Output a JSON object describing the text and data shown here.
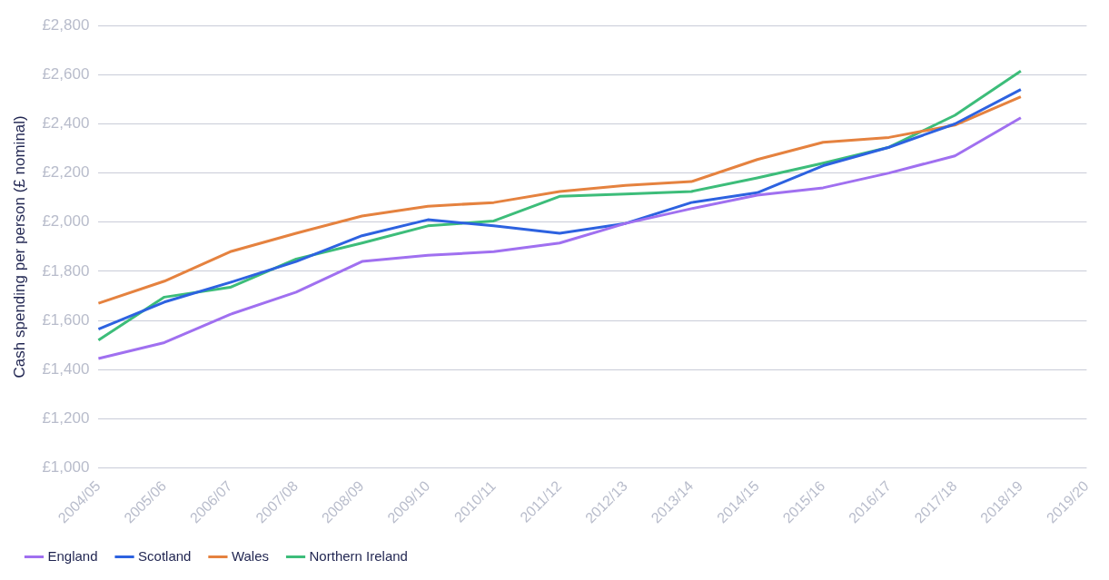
{
  "chart_data": {
    "type": "line",
    "ylabel": "Cash spending per person (£ nominal)",
    "categories": [
      "2004/05",
      "2005/06",
      "2006/07",
      "2007/08",
      "2008/09",
      "2009/10",
      "2010/11",
      "2011/12",
      "2012/13",
      "2013/14",
      "2014/15",
      "2015/16",
      "2016/17",
      "2017/18",
      "2018/19",
      "2019/20"
    ],
    "ylim": [
      1000,
      2800
    ],
    "yticks": [
      {
        "value": 1000,
        "label": "£1,000"
      },
      {
        "value": 1200,
        "label": "£1,200"
      },
      {
        "value": 1400,
        "label": "£1,400"
      },
      {
        "value": 1600,
        "label": "£1,600"
      },
      {
        "value": 1800,
        "label": "£1,800"
      },
      {
        "value": 2000,
        "label": "£2,000"
      },
      {
        "value": 2200,
        "label": "£2,200"
      },
      {
        "value": 2400,
        "label": "£2,400"
      },
      {
        "value": 2600,
        "label": "£2,600"
      },
      {
        "value": 2800,
        "label": "£2,800"
      }
    ],
    "grid": "y",
    "legend": "bottom left",
    "marker": "none",
    "line_style": "solid",
    "series": [
      {
        "name": "England",
        "color": "#a070f0",
        "values": [
          1445,
          1510,
          1625,
          1715,
          1840,
          1865,
          1880,
          1915,
          1995,
          2055,
          2110,
          2140,
          2200,
          2270,
          2425,
          null
        ]
      },
      {
        "name": "Scotland",
        "color": "#2d62e0",
        "values": [
          1565,
          1675,
          1755,
          1840,
          1945,
          2010,
          1985,
          1955,
          1995,
          2080,
          2120,
          2230,
          2305,
          2400,
          2540,
          null
        ]
      },
      {
        "name": "Wales",
        "color": "#e5823f",
        "values": [
          1670,
          1760,
          1880,
          1955,
          2025,
          2065,
          2080,
          2125,
          2150,
          2165,
          2255,
          2325,
          2345,
          2395,
          2510,
          null
        ]
      },
      {
        "name": "Northern Ireland",
        "color": "#3dbd7a",
        "values": [
          1520,
          1695,
          1735,
          1850,
          1915,
          1985,
          2005,
          2105,
          2115,
          2125,
          2180,
          2240,
          2305,
          2435,
          2615,
          null
        ]
      }
    ]
  }
}
